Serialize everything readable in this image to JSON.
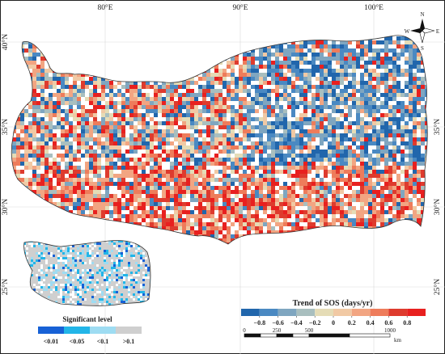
{
  "graticule": {
    "lon_labels": [
      "80°E",
      "90°E",
      "100°E"
    ],
    "lat_labels": [
      "40°N",
      "35°N",
      "30°N",
      "25°N"
    ]
  },
  "north_arrow": {
    "n": "N",
    "s": "S",
    "e": "E",
    "w": "W"
  },
  "legend_sos": {
    "title": "Trend of SOS (days/yr)",
    "class_colors": [
      "#2166ac",
      "#4a89c2",
      "#7fa6c0",
      "#a9bfbf",
      "#e5dcb6",
      "#f1c9a4",
      "#f2a582",
      "#ee7c5b",
      "#de3b2e",
      "#e8201f"
    ],
    "tick_labels": [
      "−0.8",
      "−0.6",
      "−0.4",
      "−0.2",
      "0",
      "0.2",
      "0.4",
      "0.6",
      "0.8"
    ]
  },
  "scale_bar": {
    "labels": [
      "0",
      "250",
      "500",
      "1000"
    ],
    "unit": "km"
  },
  "legend_sig": {
    "title": "Significant level",
    "class_colors": [
      "#1761d6",
      "#22b5e8",
      "#9edcf2",
      "#cfcfcf"
    ],
    "labels": [
      "<0.01",
      "<0.05",
      "<0.1",
      ">0.1"
    ]
  }
}
